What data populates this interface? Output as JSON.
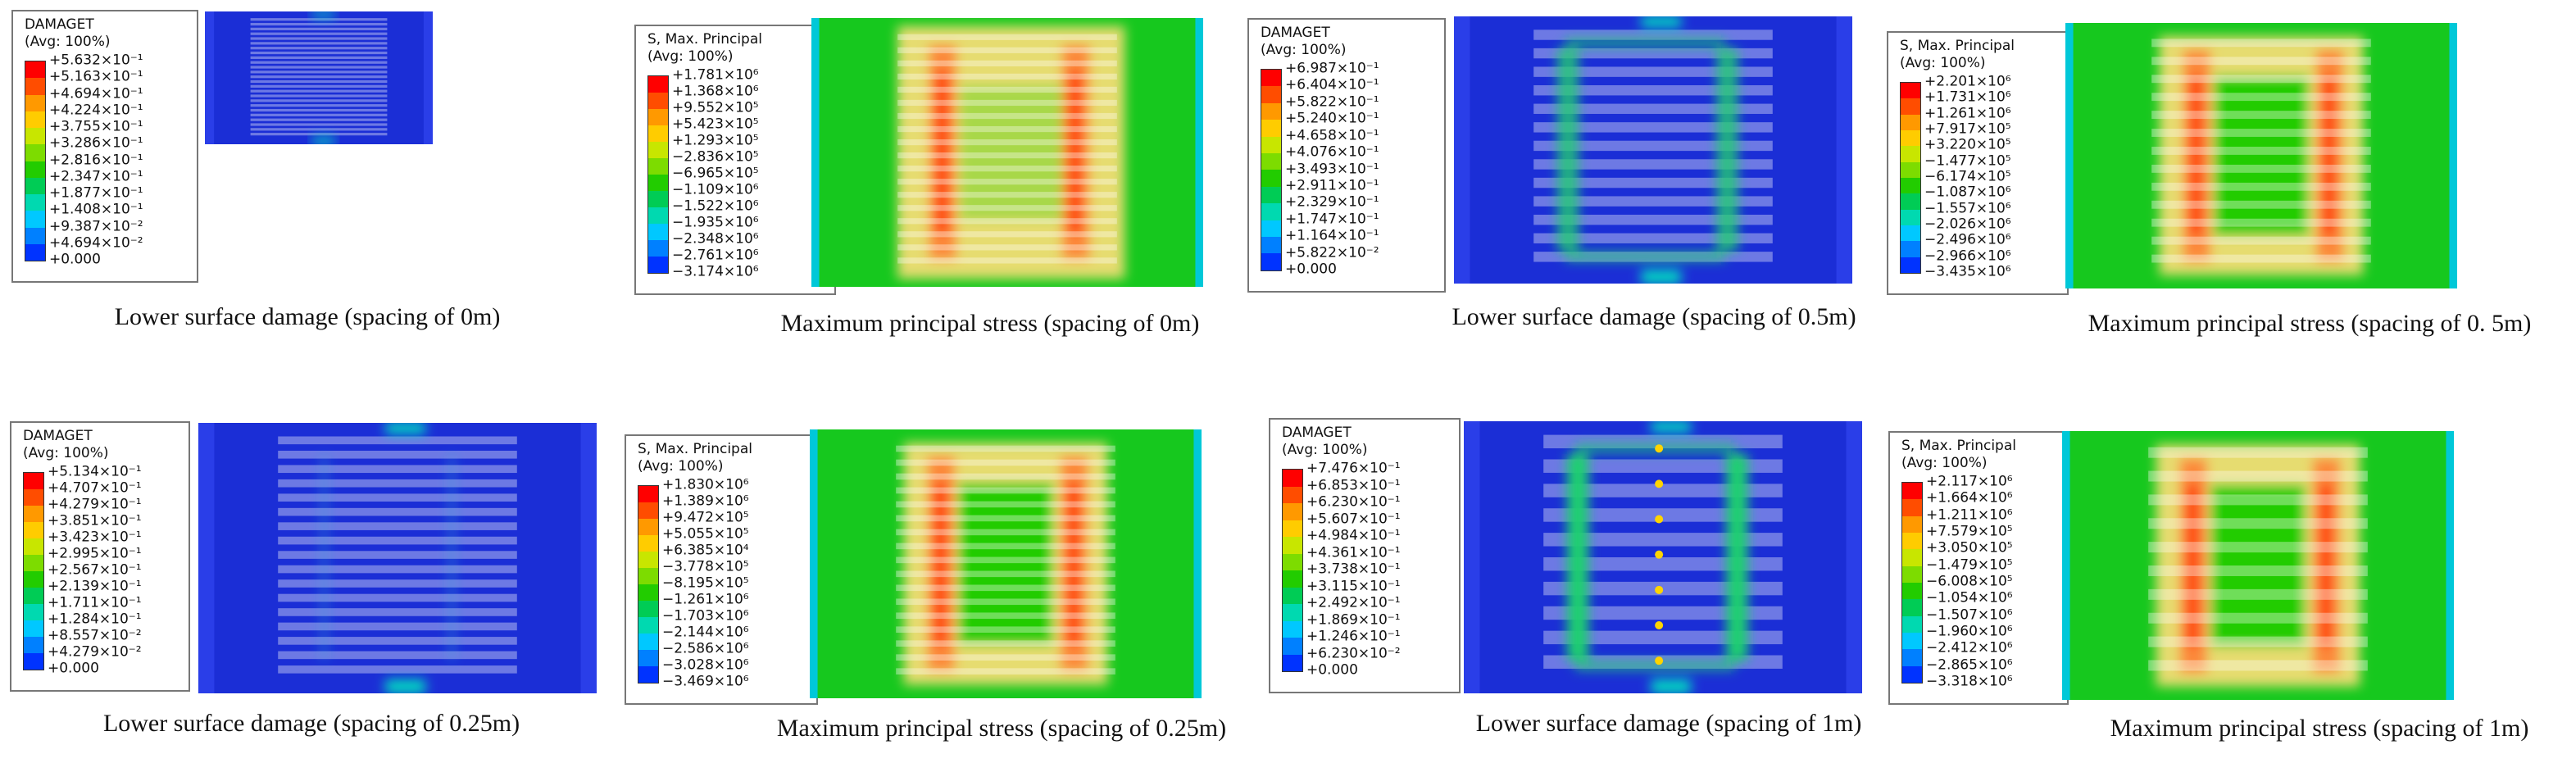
{
  "figure": {
    "panels": [
      {
        "id": "damage-0",
        "kind": "damage",
        "legend_title": [
          "DAMAGET",
          "(Avg: 100%)"
        ],
        "ticks": [
          "+5.632×10⁻¹",
          "+5.163×10⁻¹",
          "+4.694×10⁻¹",
          "+4.224×10⁻¹",
          "+3.755×10⁻¹",
          "+3.286×10⁻¹",
          "+2.816×10⁻¹",
          "+2.347×10⁻¹",
          "+1.877×10⁻¹",
          "+1.408×10⁻¹",
          "+9.387×10⁻²",
          "+4.694×10⁻²",
          "+0.000"
        ],
        "caption": "Lower surface damage (spacing of 0m)"
      },
      {
        "id": "stress-0",
        "kind": "stress",
        "legend_title": [
          "S, Max. Principal",
          "(Avg: 100%)"
        ],
        "ticks": [
          "+1.781×10⁶",
          "+1.368×10⁶",
          "+9.552×10⁵",
          "+5.423×10⁵",
          "+1.293×10⁵",
          "−2.836×10⁵",
          "−6.965×10⁵",
          "−1.109×10⁶",
          "−1.522×10⁶",
          "−1.935×10⁶",
          "−2.348×10⁶",
          "−2.761×10⁶",
          "−3.174×10⁶"
        ],
        "caption": "Maximum principal stress (spacing of 0m)"
      },
      {
        "id": "damage-05",
        "kind": "damage",
        "legend_title": [
          "DAMAGET",
          "(Avg: 100%)"
        ],
        "ticks": [
          "+6.987×10⁻¹",
          "+6.404×10⁻¹",
          "+5.822×10⁻¹",
          "+5.240×10⁻¹",
          "+4.658×10⁻¹",
          "+4.076×10⁻¹",
          "+3.493×10⁻¹",
          "+2.911×10⁻¹",
          "+2.329×10⁻¹",
          "+1.747×10⁻¹",
          "+1.164×10⁻¹",
          "+5.822×10⁻²",
          "+0.000"
        ],
        "caption": "Lower surface damage (spacing of 0.5m)"
      },
      {
        "id": "stress-05",
        "kind": "stress",
        "legend_title": [
          "S, Max. Principal",
          "(Avg: 100%)"
        ],
        "ticks": [
          "+2.201×10⁶",
          "+1.731×10⁶",
          "+1.261×10⁶",
          "+7.917×10⁵",
          "+3.220×10⁵",
          "−1.477×10⁵",
          "−6.174×10⁵",
          "−1.087×10⁶",
          "−1.557×10⁶",
          "−2.026×10⁶",
          "−2.496×10⁶",
          "−2.966×10⁶",
          "−3.435×10⁶"
        ],
        "caption": "Maximum principal stress (spacing of 0. 5m)"
      },
      {
        "id": "damage-025",
        "kind": "damage",
        "legend_title": [
          "DAMAGET",
          "(Avg: 100%)"
        ],
        "ticks": [
          "+5.134×10⁻¹",
          "+4.707×10⁻¹",
          "+4.279×10⁻¹",
          "+3.851×10⁻¹",
          "+3.423×10⁻¹",
          "+2.995×10⁻¹",
          "+2.567×10⁻¹",
          "+2.139×10⁻¹",
          "+1.711×10⁻¹",
          "+1.284×10⁻¹",
          "+8.557×10⁻²",
          "+4.279×10⁻²",
          "+0.000"
        ],
        "caption": "Lower surface damage (spacing of 0.25m)"
      },
      {
        "id": "stress-025",
        "kind": "stress",
        "legend_title": [
          "S, Max. Principal",
          "(Avg: 100%)"
        ],
        "ticks": [
          "+1.830×10⁶",
          "+1.389×10⁶",
          "+9.472×10⁵",
          "+5.055×10⁵",
          "+6.385×10⁴",
          "−3.778×10⁵",
          "−8.195×10⁵",
          "−1.261×10⁶",
          "−1.703×10⁶",
          "−2.144×10⁶",
          "−2.586×10⁶",
          "−3.028×10⁶",
          "−3.469×10⁶"
        ],
        "caption": "Maximum principal stress (spacing of 0.25m)"
      },
      {
        "id": "damage-1",
        "kind": "damage",
        "legend_title": [
          "DAMAGET",
          "(Avg: 100%)"
        ],
        "ticks": [
          "+7.476×10⁻¹",
          "+6.853×10⁻¹",
          "+6.230×10⁻¹",
          "+5.607×10⁻¹",
          "+4.984×10⁻¹",
          "+4.361×10⁻¹",
          "+3.738×10⁻¹",
          "+3.115×10⁻¹",
          "+2.492×10⁻¹",
          "+1.869×10⁻¹",
          "+1.246×10⁻¹",
          "+6.230×10⁻²",
          "+0.000"
        ],
        "caption": "Lower surface damage (spacing of 1m)"
      },
      {
        "id": "stress-1",
        "kind": "stress",
        "legend_title": [
          "S, Max. Principal",
          "(Avg: 100%)"
        ],
        "ticks": [
          "+2.117×10⁶",
          "+1.664×10⁶",
          "+1.211×10⁶",
          "+7.579×10⁵",
          "+3.050×10⁵",
          "−1.479×10⁵",
          "−6.008×10⁵",
          "−1.054×10⁶",
          "−1.507×10⁶",
          "−1.960×10⁶",
          "−2.412×10⁶",
          "−2.865×10⁶",
          "−3.318×10⁶"
        ],
        "caption": "Maximum principal stress (spacing of 1m)"
      }
    ],
    "colormap": [
      "#ff0000",
      "#ff4d00",
      "#ff9900",
      "#ffcc00",
      "#c8e600",
      "#7ddc00",
      "#22cc00",
      "#00cc55",
      "#00d9b0",
      "#00c8ff",
      "#0080ff",
      "#0033ff"
    ]
  }
}
